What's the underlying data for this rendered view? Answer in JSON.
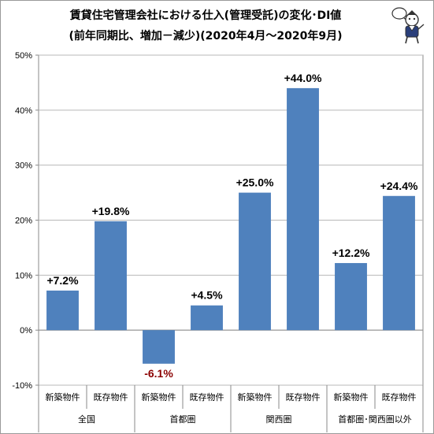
{
  "header": {
    "title_line1": "賃貸住宅管理会社における仕入(管理受託)の変化･DI値",
    "title_line2": "(前年同期比、増加－減少)(2020年4月～2020年9月)"
  },
  "colors": {
    "bar": "#4f81bd",
    "negative_label": "#8b0000",
    "axis": "#898989",
    "grid": "#b8b8b8"
  },
  "chart_data": {
    "type": "bar",
    "groups": [
      "全国",
      "首都圏",
      "関西圏",
      "首都圏･関西圏以外"
    ],
    "categories": [
      "新築物件",
      "既存物件",
      "新築物件",
      "既存物件",
      "新築物件",
      "既存物件",
      "新築物件",
      "既存物件"
    ],
    "values": [
      7.2,
      19.8,
      -6.1,
      4.5,
      25.0,
      44.0,
      12.2,
      24.4
    ],
    "value_labels": [
      "+7.2%",
      "+19.8%",
      "-6.1%",
      "+4.5%",
      "+25.0%",
      "+44.0%",
      "+12.2%",
      "+24.4%"
    ],
    "yticks": [
      "-10%",
      "0%",
      "10%",
      "20%",
      "30%",
      "40%",
      "50%"
    ],
    "ylim": [
      -10,
      50
    ],
    "grid": true
  }
}
